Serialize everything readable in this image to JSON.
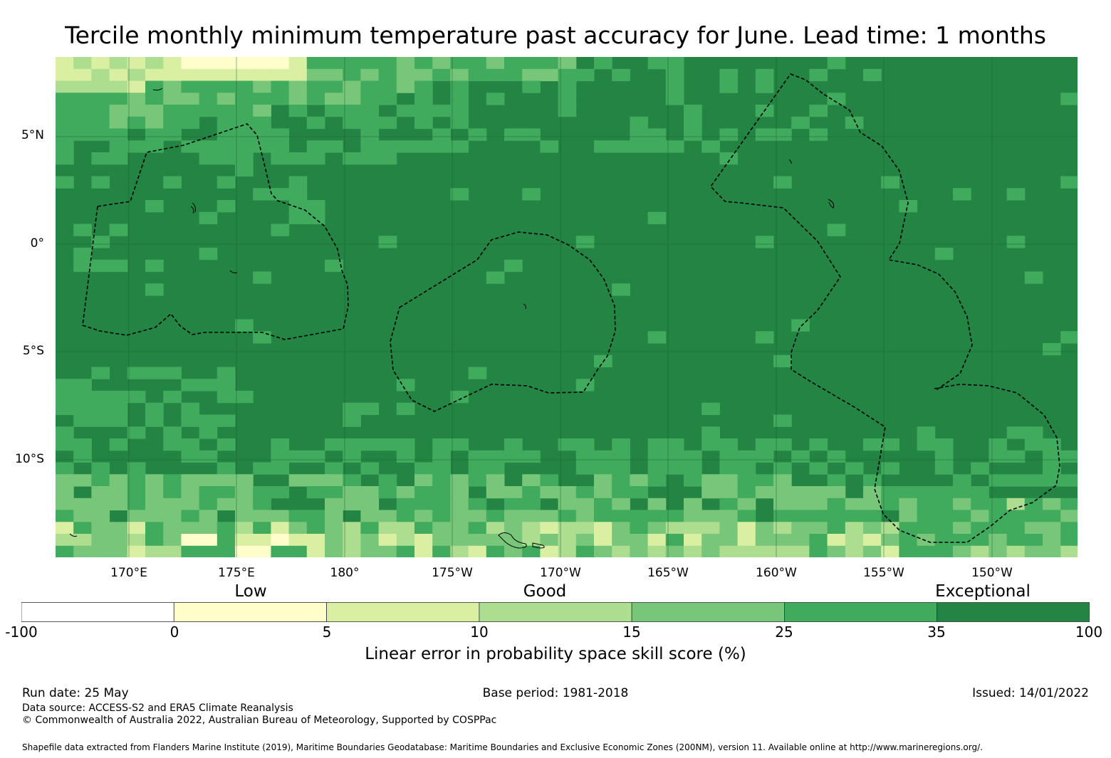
{
  "title": "Tercile monthly minimum temperature past accuracy for June. Lead time: 1 months",
  "map": {
    "lat_labels": [
      "5°N",
      "0°",
      "5°S",
      "10°S"
    ],
    "lon_labels": [
      "170°E",
      "175°E",
      "180°",
      "175°W",
      "170°W",
      "165°W",
      "160°W",
      "155°W",
      "150°W"
    ]
  },
  "legend": {
    "categories": [
      "Low",
      "Good",
      "Exceptional"
    ],
    "ticks": [
      "-100",
      "0",
      "5",
      "10",
      "15",
      "25",
      "35",
      "100"
    ],
    "colors": [
      "#ffffff",
      "#ffffcc",
      "#d9f0a3",
      "#addd8e",
      "#78c679",
      "#41ab5d",
      "#238443"
    ],
    "label": "Linear error in probability space skill score (%)"
  },
  "footer": {
    "run_date": "Run date: 25 May",
    "base_period": "Base period: 1981-2018",
    "issued": "Issued: 14/01/2022",
    "data_source": "Data source: ACCESS-S2 and ERA5 Climate Reanalysis",
    "copyright": "© Commonwealth of Australia 2022, Australian Bureau of Meteorology, Supported by COSPPac",
    "shapefile": "Shapefile data extracted from Flanders Marine Institute (2019), Maritime Boundaries Geodatabase: Maritime Boundaries and Exclusive Economic Zones (200NM), version 11. Available online at http://www.marineregions.org/."
  }
}
